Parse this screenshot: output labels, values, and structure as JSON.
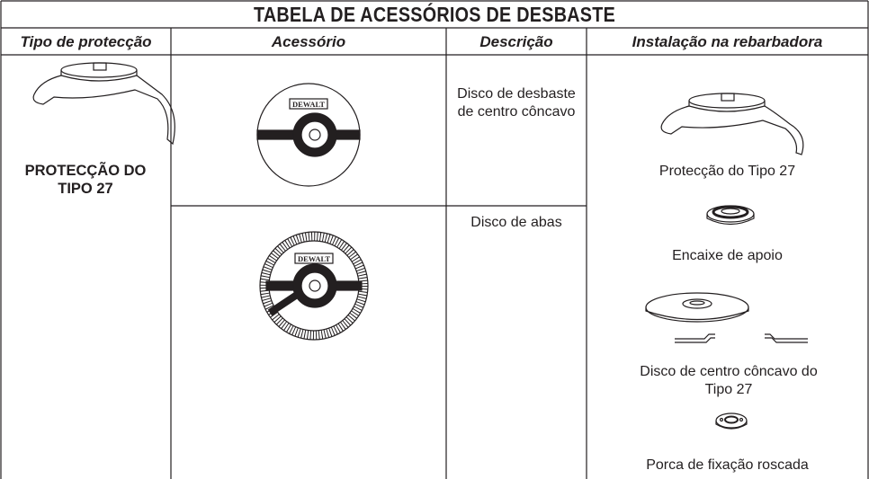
{
  "header": {
    "title": "TABELA DE ACESSÓRIOS DE DESBASTE"
  },
  "table": {
    "columns": [
      "Tipo de protecção",
      "Acessório",
      "Descrição",
      "Instalação na rebarbadora"
    ],
    "guard_type": "PROTECÇÃO DO TIPO 27",
    "accessories": [
      {
        "logo": "DEWALT",
        "description": "Disco de desbaste de centro côncavo"
      },
      {
        "logo": "DEWALT",
        "description": "Disco de abas"
      }
    ],
    "installation": [
      "Protecção do Tipo 27",
      "Encaixe de apoio",
      "Disco de centro côncavo do Tipo 27",
      "Porca de fixação roscada"
    ]
  }
}
